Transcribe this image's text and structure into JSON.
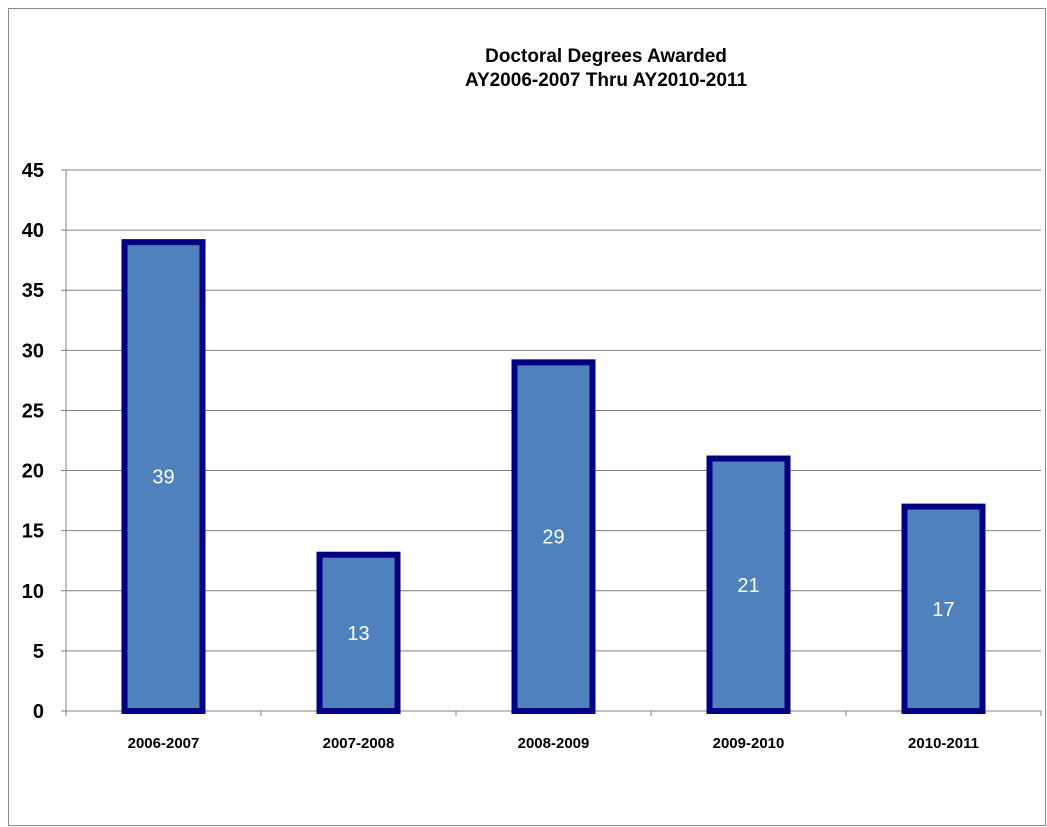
{
  "chart_data": {
    "type": "bar",
    "title": "Doctoral Degrees Awarded",
    "subtitle": "AY2006-2007 Thru  AY2010-2011",
    "categories": [
      "2006-2007",
      "2007-2008",
      "2008-2009",
      "2009-2010",
      "2010-2011"
    ],
    "values": [
      39,
      13,
      29,
      21,
      17
    ],
    "data_labels": [
      "39",
      "13",
      "29",
      "21",
      "17"
    ],
    "y_ticks": [
      "0",
      "5",
      "10",
      "15",
      "20",
      "25",
      "30",
      "35",
      "40",
      "45"
    ],
    "ylim": [
      0,
      45
    ],
    "grid": true,
    "legend": "none",
    "colors": {
      "bar_fill": "#4f81bd",
      "bar_stroke": "#000080",
      "grid": "#808080",
      "axis": "#808080"
    }
  }
}
